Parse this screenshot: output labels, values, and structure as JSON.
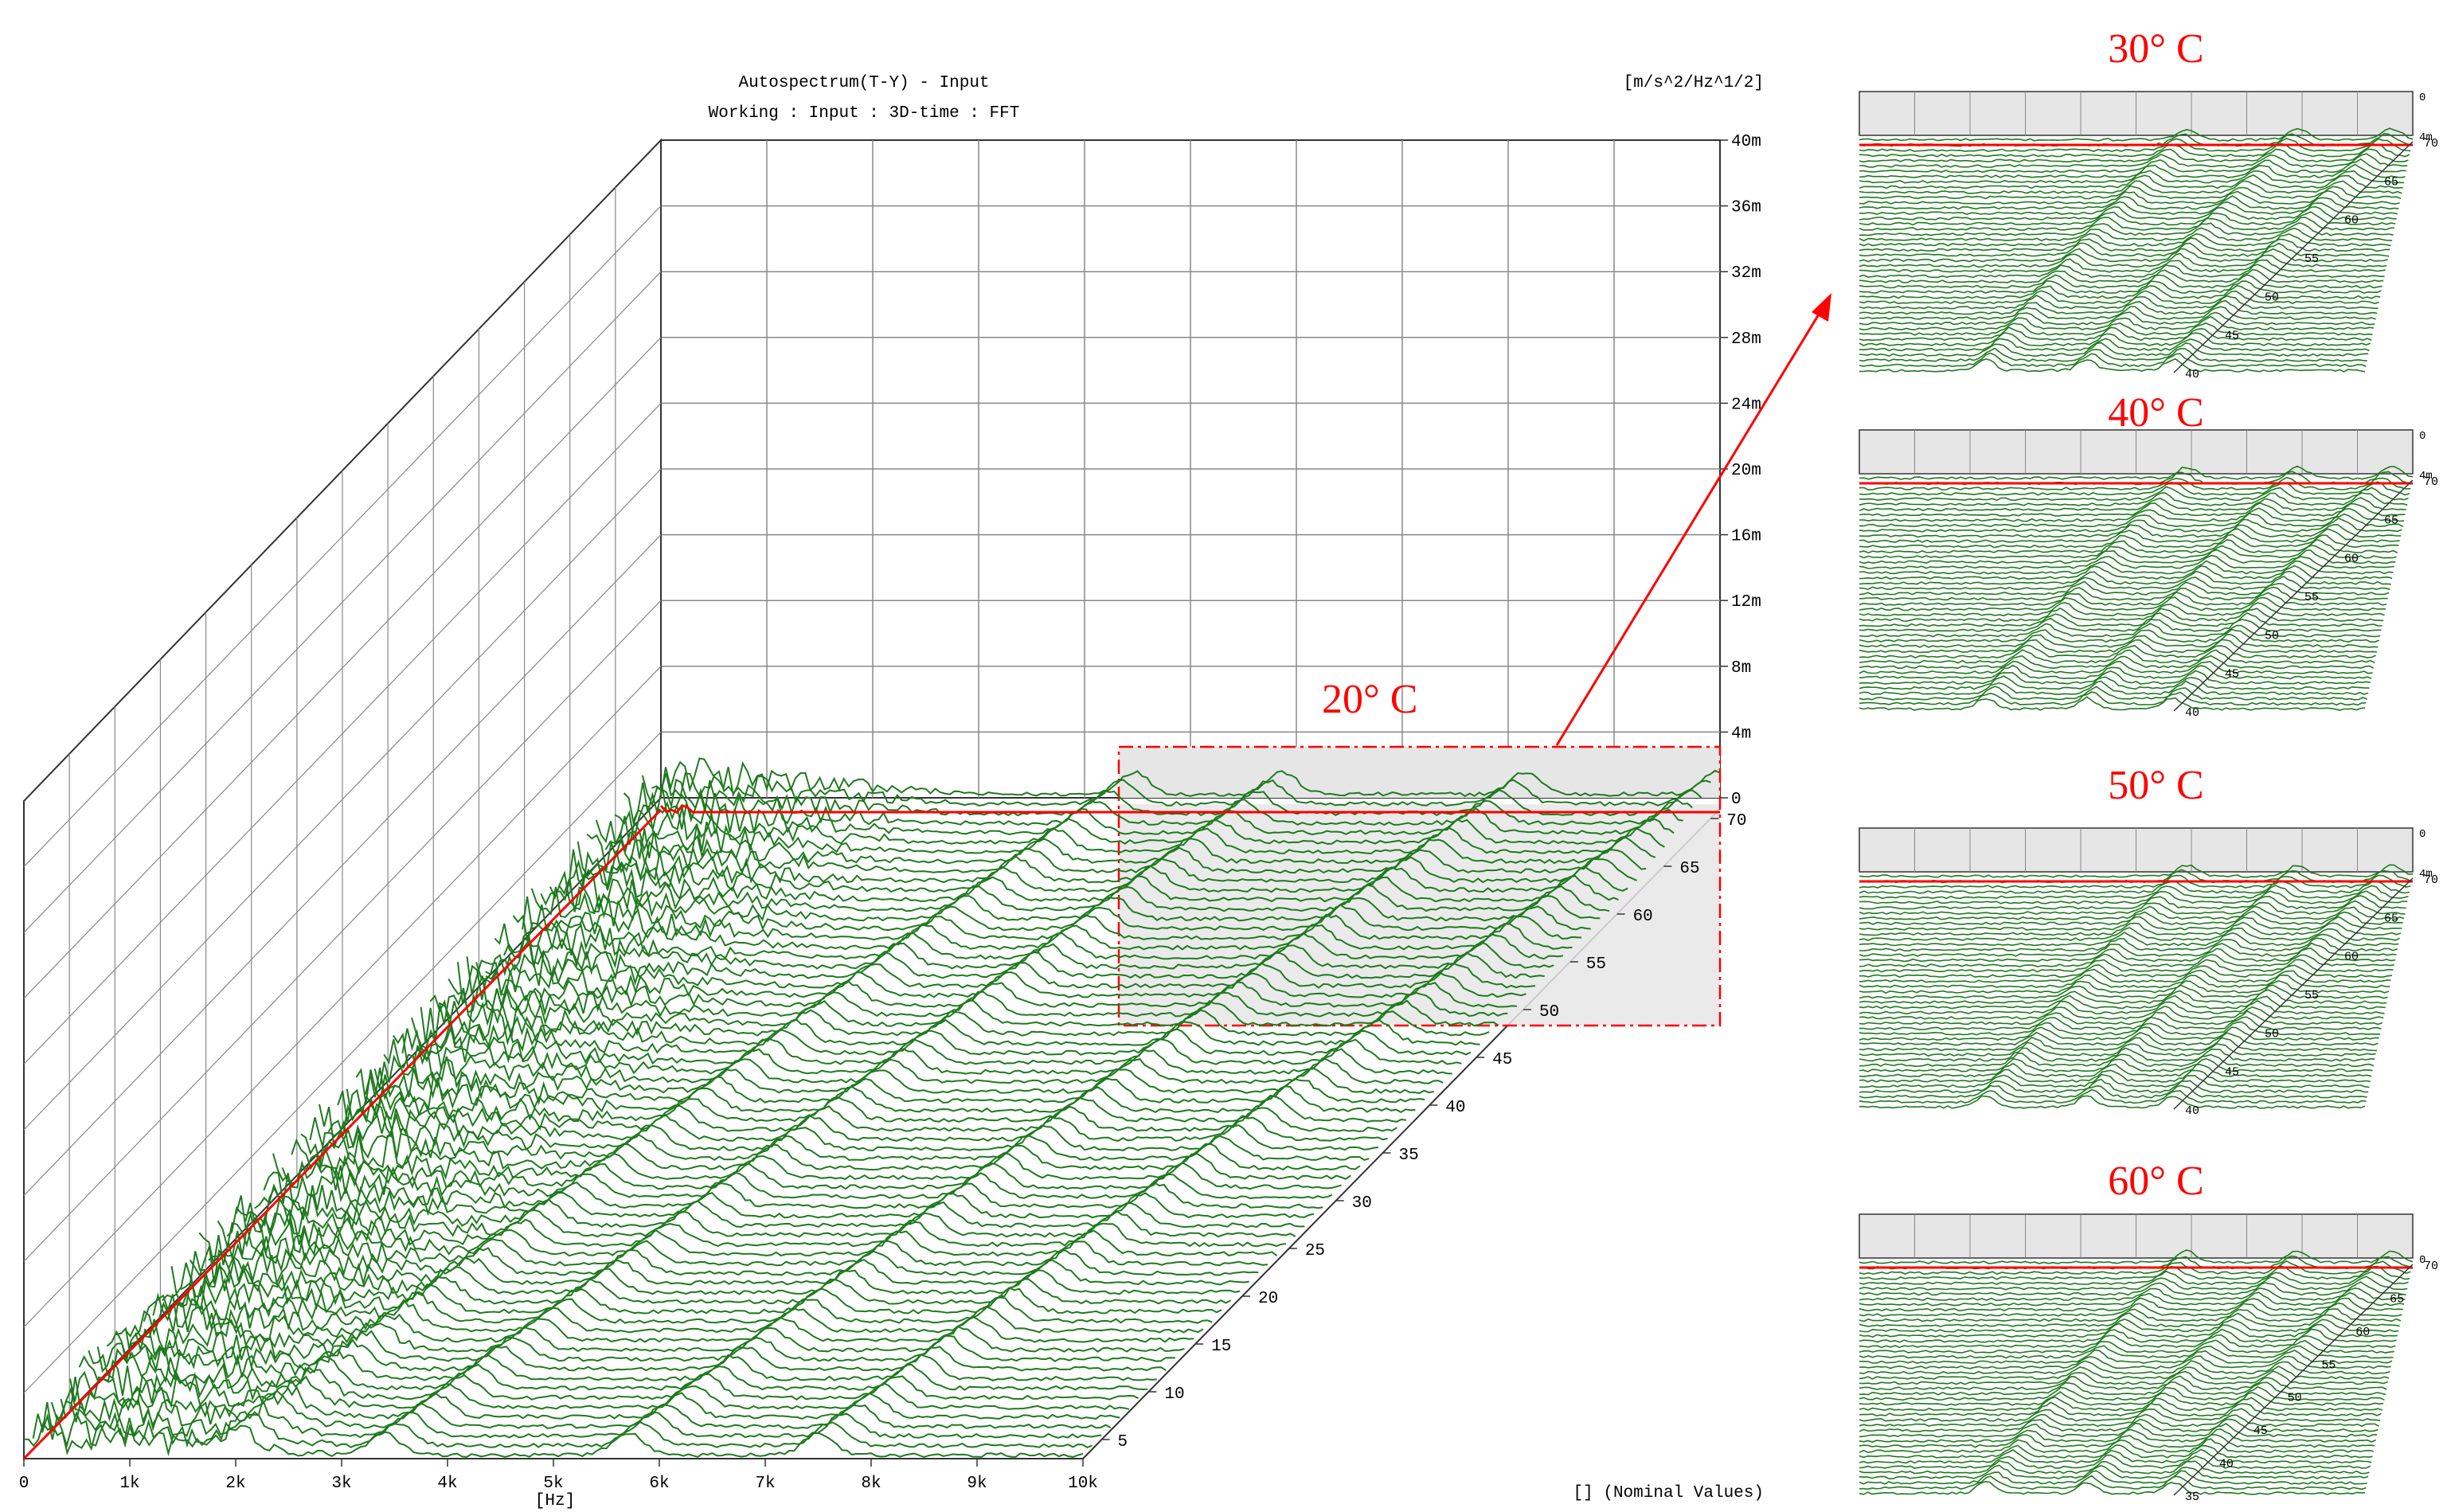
{
  "header": {
    "title": "Autospectrum(T-Y) - Input",
    "subtitle": "Working : Input : 3D-time : FFT",
    "units": "[m/s^2/Hz^1/2]",
    "footer_note": "[] (Nominal Values)"
  },
  "colors": {
    "trace": "#1f7a1f",
    "trace_dark": "#0b5e0b",
    "highlight": "#ff0000",
    "grid": "#888888",
    "panel_fill": "#e6e6e6",
    "text": "#000000",
    "label_red": "#ff0000"
  },
  "chart_data": [
    {
      "id": "main",
      "type": "waterfall",
      "title": "Autospectrum(T-Y) - Input",
      "subtitle": "Working : Input : 3D-time : FFT",
      "xlabel": "[Hz]",
      "xlim": [
        0,
        10000
      ],
      "x_ticks": [
        "0",
        "1k",
        "2k",
        "3k",
        "4k",
        "5k",
        "6k",
        "7k",
        "8k",
        "9k",
        "10k"
      ],
      "zlim": [
        0,
        0.04
      ],
      "z_ticks": [
        "0",
        "4m",
        "8m",
        "12m",
        "16m",
        "20m",
        "24m",
        "28m",
        "32m",
        "36m",
        "40m"
      ],
      "z_units": "[m/s^2/Hz^1/2]",
      "y_ticks": [
        "5",
        "10",
        "15",
        "20",
        "25",
        "30",
        "35",
        "40",
        "45",
        "50",
        "55",
        "60",
        "65",
        "70"
      ],
      "ylim": [
        3,
        71
      ],
      "annotation": "20° C",
      "highlight_region": {
        "x_range": [
          5000,
          10000
        ],
        "y_range": [
          48,
          71
        ]
      }
    },
    {
      "id": "inset-30",
      "type": "waterfall",
      "label": "30° C",
      "z_ticks": [
        "4m",
        "0"
      ],
      "y_ticks": [
        "40",
        "45",
        "50",
        "55",
        "60",
        "65",
        "70"
      ]
    },
    {
      "id": "inset-40",
      "type": "waterfall",
      "label": "40° C",
      "z_ticks": [
        "4m",
        "0"
      ],
      "y_ticks": [
        "40",
        "45",
        "50",
        "55",
        "60",
        "65",
        "70"
      ]
    },
    {
      "id": "inset-50",
      "type": "waterfall",
      "label": "50° C",
      "z_ticks": [
        "4m",
        "0"
      ],
      "y_ticks": [
        "40",
        "45",
        "50",
        "55",
        "60",
        "65",
        "70"
      ]
    },
    {
      "id": "inset-60",
      "type": "waterfall",
      "label": "60° C",
      "z_ticks": [
        "0"
      ],
      "y_ticks": [
        "35",
        "40",
        "45",
        "50",
        "55",
        "60",
        "65",
        "70"
      ]
    }
  ]
}
